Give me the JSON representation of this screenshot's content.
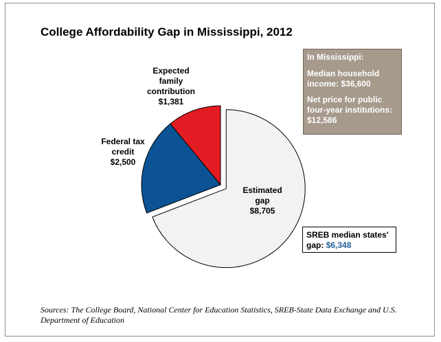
{
  "title": "College Affordability Gap in Mississippi, 2012",
  "chart_data": {
    "type": "pie",
    "title": "College Affordability Gap in Mississippi, 2012",
    "slices": [
      {
        "label": "Estimated gap",
        "label_lines": [
          "Estimated",
          "gap",
          "$8,705"
        ],
        "value": 8705,
        "value_text": "$8,705",
        "color": "#ffffff",
        "pattern": "dotted",
        "exploded": true
      },
      {
        "label": "Federal tax credit",
        "label_lines": [
          "Federal tax",
          "credit",
          "$2,500"
        ],
        "value": 2500,
        "value_text": "$2,500",
        "color": "#0b5394"
      },
      {
        "label": "Expected family contribution",
        "label_lines": [
          "Expected",
          "family",
          "contribution",
          "$1,381"
        ],
        "value": 1381,
        "value_text": "$1,381",
        "color": "#e31b23"
      }
    ],
    "total": 12586
  },
  "info_box": {
    "heading": "In Mississippi:",
    "median_income": "Median household income: $36,600",
    "net_price": "Net price for public four-year institutions: $12,586",
    "background": "#a69a8c"
  },
  "median_box": {
    "label": "SREB median states' gap:",
    "value": "$6,348"
  },
  "sources": "Sources: The College Board, National Center for Education Statistics, SREB-State Data Exchange and U.S. Department of Education"
}
